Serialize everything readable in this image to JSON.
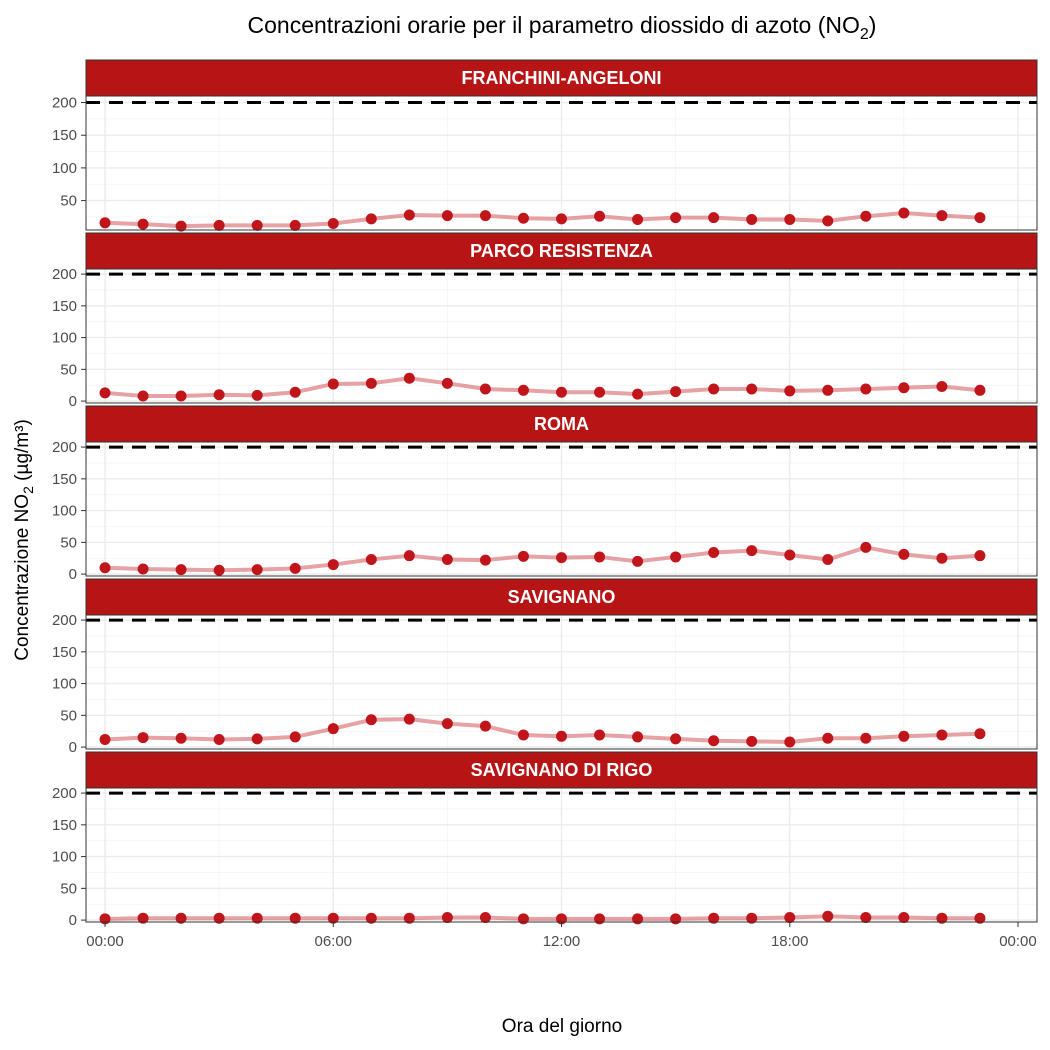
{
  "chart_data": {
    "type": "line",
    "title_prefix": "Concentrazioni orarie per il parametro diossido di azoto (NO",
    "title_sub": "2",
    "title_suffix": ")",
    "xlabel": "Ora del giorno",
    "ylabel_prefix": "Concentrazione NO",
    "ylabel_sub": "2",
    "ylabel_suffix": " (µg/m³)",
    "x_tick_labels": [
      "00:00",
      "06:00",
      "12:00",
      "18:00",
      "00:00"
    ],
    "x_hours": [
      0,
      1,
      2,
      3,
      4,
      5,
      6,
      7,
      8,
      9,
      10,
      11,
      12,
      13,
      14,
      15,
      16,
      17,
      18,
      19,
      20,
      21,
      22,
      23
    ],
    "limit_value": 200,
    "colors": {
      "strip": "#b71416",
      "point": "#c0161b",
      "line": "#c0161b"
    },
    "panels": [
      {
        "name": "FRANCHINI-ANGELONI",
        "ylim": [
          5,
          210
        ],
        "y_ticks": [
          50,
          100,
          150,
          200
        ],
        "values": [
          16,
          14,
          11,
          12,
          12,
          12,
          15,
          22,
          28,
          27,
          27,
          23,
          22,
          26,
          21,
          24,
          24,
          21,
          21,
          19,
          26,
          31,
          27,
          24
        ]
      },
      {
        "name": "PARCO RESISTENZA",
        "ylim": [
          -3,
          208
        ],
        "y_ticks": [
          0,
          50,
          100,
          150,
          200
        ],
        "values": [
          13,
          8,
          8,
          10,
          9,
          14,
          27,
          28,
          36,
          28,
          19,
          17,
          14,
          14,
          11,
          15,
          19,
          19,
          16,
          17,
          19,
          21,
          23,
          17
        ]
      },
      {
        "name": "ROMA",
        "ylim": [
          -3,
          208
        ],
        "y_ticks": [
          0,
          50,
          100,
          150,
          200
        ],
        "values": [
          10,
          8,
          7,
          6,
          7,
          9,
          15,
          23,
          29,
          23,
          22,
          28,
          26,
          27,
          20,
          27,
          34,
          37,
          30,
          23,
          42,
          31,
          25,
          29
        ]
      },
      {
        "name": "SAVIGNANO",
        "ylim": [
          -3,
          208
        ],
        "y_ticks": [
          0,
          50,
          100,
          150,
          200
        ],
        "values": [
          12,
          15,
          14,
          12,
          13,
          16,
          29,
          43,
          44,
          37,
          33,
          19,
          17,
          19,
          16,
          13,
          10,
          9,
          8,
          14,
          14,
          17,
          19,
          21
        ]
      },
      {
        "name": "SAVIGNANO DI RIGO",
        "ylim": [
          -3,
          208
        ],
        "y_ticks": [
          0,
          50,
          100,
          150,
          200
        ],
        "values": [
          2,
          3,
          3,
          3,
          3,
          3,
          3,
          3,
          3,
          4,
          4,
          2,
          2,
          2,
          2,
          2,
          3,
          3,
          4,
          6,
          4,
          4,
          3,
          3
        ]
      }
    ]
  }
}
